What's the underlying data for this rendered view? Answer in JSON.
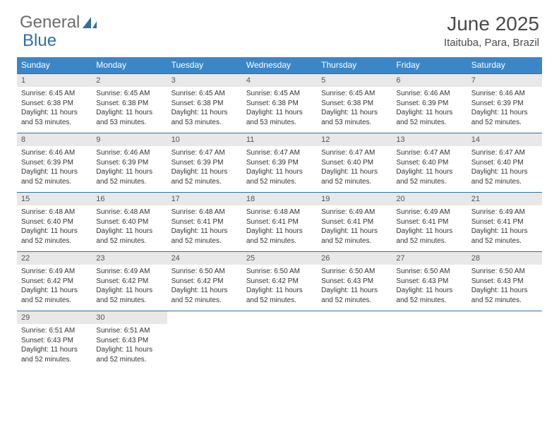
{
  "logo": {
    "text1": "General",
    "text2": "Blue"
  },
  "title": "June 2025",
  "location": "Itaituba, Para, Brazil",
  "day_headers": [
    "Sunday",
    "Monday",
    "Tuesday",
    "Wednesday",
    "Thursday",
    "Friday",
    "Saturday"
  ],
  "colors": {
    "header_bg": "#3b86c6",
    "header_text": "#ffffff",
    "week_border": "#2f6fa8",
    "date_bg": "#e8e8e8",
    "logo_gray": "#6b6b6b",
    "logo_blue": "#2f6fa8",
    "body_text": "#333333"
  },
  "weeks": [
    [
      {
        "date": "1",
        "sunrise": "Sunrise: 6:45 AM",
        "sunset": "Sunset: 6:38 PM",
        "daylight": "Daylight: 11 hours and 53 minutes."
      },
      {
        "date": "2",
        "sunrise": "Sunrise: 6:45 AM",
        "sunset": "Sunset: 6:38 PM",
        "daylight": "Daylight: 11 hours and 53 minutes."
      },
      {
        "date": "3",
        "sunrise": "Sunrise: 6:45 AM",
        "sunset": "Sunset: 6:38 PM",
        "daylight": "Daylight: 11 hours and 53 minutes."
      },
      {
        "date": "4",
        "sunrise": "Sunrise: 6:45 AM",
        "sunset": "Sunset: 6:38 PM",
        "daylight": "Daylight: 11 hours and 53 minutes."
      },
      {
        "date": "5",
        "sunrise": "Sunrise: 6:45 AM",
        "sunset": "Sunset: 6:38 PM",
        "daylight": "Daylight: 11 hours and 53 minutes."
      },
      {
        "date": "6",
        "sunrise": "Sunrise: 6:46 AM",
        "sunset": "Sunset: 6:39 PM",
        "daylight": "Daylight: 11 hours and 52 minutes."
      },
      {
        "date": "7",
        "sunrise": "Sunrise: 6:46 AM",
        "sunset": "Sunset: 6:39 PM",
        "daylight": "Daylight: 11 hours and 52 minutes."
      }
    ],
    [
      {
        "date": "8",
        "sunrise": "Sunrise: 6:46 AM",
        "sunset": "Sunset: 6:39 PM",
        "daylight": "Daylight: 11 hours and 52 minutes."
      },
      {
        "date": "9",
        "sunrise": "Sunrise: 6:46 AM",
        "sunset": "Sunset: 6:39 PM",
        "daylight": "Daylight: 11 hours and 52 minutes."
      },
      {
        "date": "10",
        "sunrise": "Sunrise: 6:47 AM",
        "sunset": "Sunset: 6:39 PM",
        "daylight": "Daylight: 11 hours and 52 minutes."
      },
      {
        "date": "11",
        "sunrise": "Sunrise: 6:47 AM",
        "sunset": "Sunset: 6:39 PM",
        "daylight": "Daylight: 11 hours and 52 minutes."
      },
      {
        "date": "12",
        "sunrise": "Sunrise: 6:47 AM",
        "sunset": "Sunset: 6:40 PM",
        "daylight": "Daylight: 11 hours and 52 minutes."
      },
      {
        "date": "13",
        "sunrise": "Sunrise: 6:47 AM",
        "sunset": "Sunset: 6:40 PM",
        "daylight": "Daylight: 11 hours and 52 minutes."
      },
      {
        "date": "14",
        "sunrise": "Sunrise: 6:47 AM",
        "sunset": "Sunset: 6:40 PM",
        "daylight": "Daylight: 11 hours and 52 minutes."
      }
    ],
    [
      {
        "date": "15",
        "sunrise": "Sunrise: 6:48 AM",
        "sunset": "Sunset: 6:40 PM",
        "daylight": "Daylight: 11 hours and 52 minutes."
      },
      {
        "date": "16",
        "sunrise": "Sunrise: 6:48 AM",
        "sunset": "Sunset: 6:40 PM",
        "daylight": "Daylight: 11 hours and 52 minutes."
      },
      {
        "date": "17",
        "sunrise": "Sunrise: 6:48 AM",
        "sunset": "Sunset: 6:41 PM",
        "daylight": "Daylight: 11 hours and 52 minutes."
      },
      {
        "date": "18",
        "sunrise": "Sunrise: 6:48 AM",
        "sunset": "Sunset: 6:41 PM",
        "daylight": "Daylight: 11 hours and 52 minutes."
      },
      {
        "date": "19",
        "sunrise": "Sunrise: 6:49 AM",
        "sunset": "Sunset: 6:41 PM",
        "daylight": "Daylight: 11 hours and 52 minutes."
      },
      {
        "date": "20",
        "sunrise": "Sunrise: 6:49 AM",
        "sunset": "Sunset: 6:41 PM",
        "daylight": "Daylight: 11 hours and 52 minutes."
      },
      {
        "date": "21",
        "sunrise": "Sunrise: 6:49 AM",
        "sunset": "Sunset: 6:41 PM",
        "daylight": "Daylight: 11 hours and 52 minutes."
      }
    ],
    [
      {
        "date": "22",
        "sunrise": "Sunrise: 6:49 AM",
        "sunset": "Sunset: 6:42 PM",
        "daylight": "Daylight: 11 hours and 52 minutes."
      },
      {
        "date": "23",
        "sunrise": "Sunrise: 6:49 AM",
        "sunset": "Sunset: 6:42 PM",
        "daylight": "Daylight: 11 hours and 52 minutes."
      },
      {
        "date": "24",
        "sunrise": "Sunrise: 6:50 AM",
        "sunset": "Sunset: 6:42 PM",
        "daylight": "Daylight: 11 hours and 52 minutes."
      },
      {
        "date": "25",
        "sunrise": "Sunrise: 6:50 AM",
        "sunset": "Sunset: 6:42 PM",
        "daylight": "Daylight: 11 hours and 52 minutes."
      },
      {
        "date": "26",
        "sunrise": "Sunrise: 6:50 AM",
        "sunset": "Sunset: 6:43 PM",
        "daylight": "Daylight: 11 hours and 52 minutes."
      },
      {
        "date": "27",
        "sunrise": "Sunrise: 6:50 AM",
        "sunset": "Sunset: 6:43 PM",
        "daylight": "Daylight: 11 hours and 52 minutes."
      },
      {
        "date": "28",
        "sunrise": "Sunrise: 6:50 AM",
        "sunset": "Sunset: 6:43 PM",
        "daylight": "Daylight: 11 hours and 52 minutes."
      }
    ],
    [
      {
        "date": "29",
        "sunrise": "Sunrise: 6:51 AM",
        "sunset": "Sunset: 6:43 PM",
        "daylight": "Daylight: 11 hours and 52 minutes."
      },
      {
        "date": "30",
        "sunrise": "Sunrise: 6:51 AM",
        "sunset": "Sunset: 6:43 PM",
        "daylight": "Daylight: 11 hours and 52 minutes."
      },
      {
        "empty": true
      },
      {
        "empty": true
      },
      {
        "empty": true
      },
      {
        "empty": true
      },
      {
        "empty": true
      }
    ]
  ]
}
